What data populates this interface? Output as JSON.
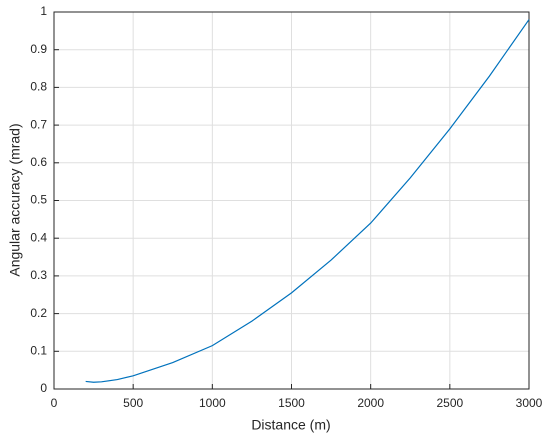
{
  "chart_data": {
    "type": "line",
    "x_label": "Distance (m)",
    "y_label": "Angular accuracy (mrad)",
    "x": [
      200,
      250,
      300,
      400,
      500,
      750,
      1000,
      1250,
      1500,
      1750,
      2000,
      2250,
      2500,
      2750,
      3000
    ],
    "series": [
      {
        "color": "#0072bd",
        "values": [
          0.02,
          0.018,
          0.019,
          0.025,
          0.035,
          0.07,
          0.115,
          0.18,
          0.255,
          0.342,
          0.44,
          0.56,
          0.69,
          0.83,
          0.98
        ]
      }
    ],
    "xlim": [
      0,
      3000
    ],
    "xticks": [
      0,
      500,
      1000,
      1500,
      2000,
      2500,
      3000
    ],
    "ylim": [
      0,
      1
    ],
    "yticks": [
      0,
      0.1,
      0.2,
      0.3,
      0.4,
      0.5,
      0.6,
      0.7,
      0.8,
      0.9,
      1
    ],
    "grid": true
  }
}
